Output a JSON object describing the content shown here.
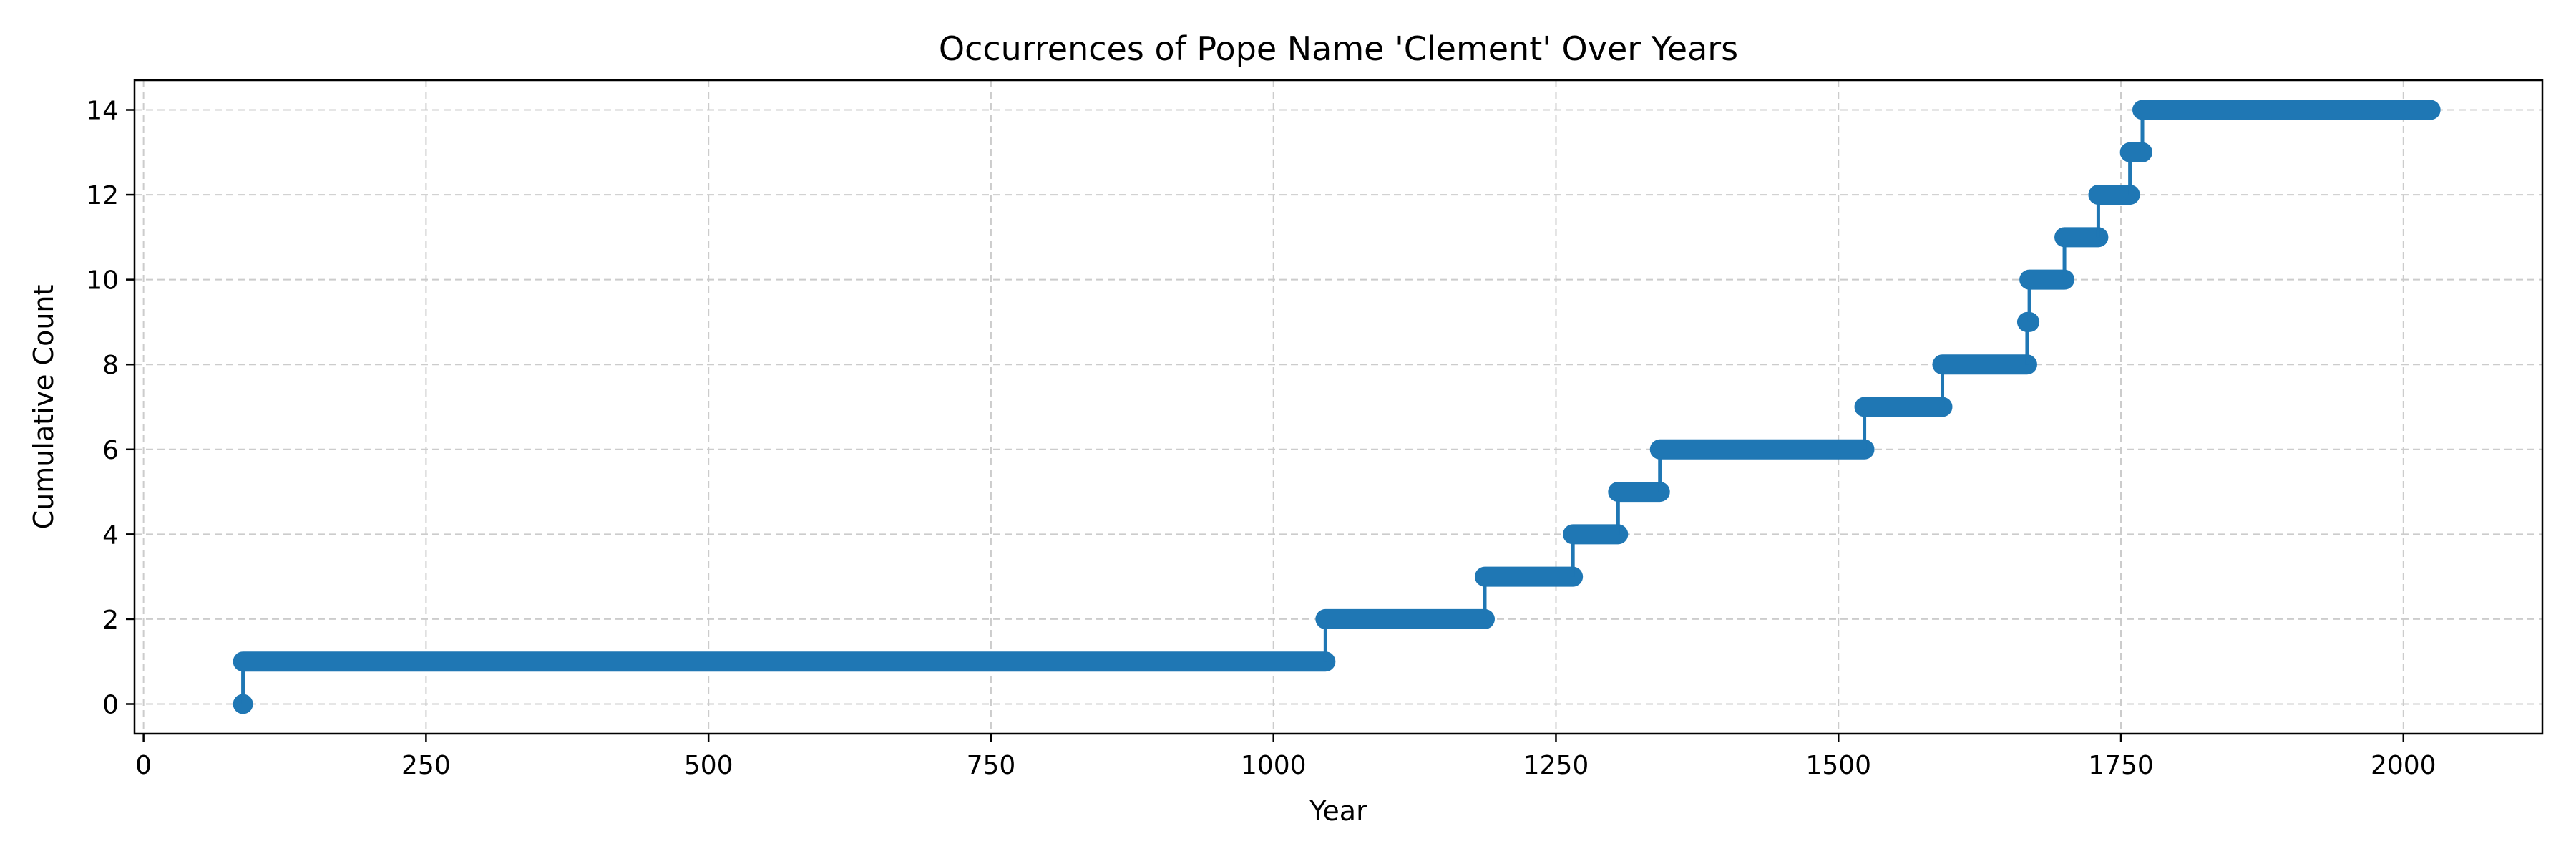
{
  "chart_data": {
    "type": "line",
    "title": "Occurrences of Pope Name 'Clement' Over Years",
    "xlabel": "Year",
    "ylabel": "Cumulative Count",
    "xlim": [
      -8,
      2123
    ],
    "ylim": [
      -0.7,
      14.7
    ],
    "xticks": [
      0,
      250,
      500,
      750,
      1000,
      1250,
      1500,
      1750,
      2000
    ],
    "yticks": [
      0,
      2,
      4,
      6,
      8,
      10,
      12,
      14
    ],
    "grid": true,
    "line_color": "#1f77b4",
    "grid_color": "#cccccc",
    "series": [
      {
        "step_years": [
          88,
          1046,
          1187,
          1265,
          1305,
          1342,
          1523,
          1592,
          1667,
          1669,
          1700,
          1730,
          1758,
          1769
        ],
        "end_year": 2024
      }
    ]
  }
}
